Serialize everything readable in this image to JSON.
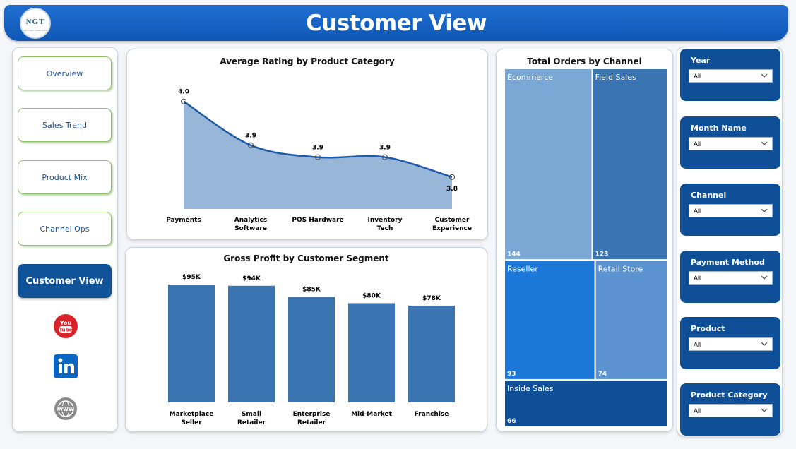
{
  "header": {
    "title": "Customer View",
    "logo_text": "NGT",
    "logo_subtext": "NEXT GEN TEMPLATES"
  },
  "nav": {
    "items": [
      {
        "label": "Overview"
      },
      {
        "label": "Sales Trend"
      },
      {
        "label": "Product Mix"
      },
      {
        "label": "Channel Ops"
      },
      {
        "label": "Customer View",
        "active": true
      }
    ],
    "social": [
      {
        "icon": "youtube-icon",
        "text": "You Tube"
      },
      {
        "icon": "linkedin-icon",
        "text": "in"
      },
      {
        "icon": "globe-icon",
        "text": "WWW"
      }
    ]
  },
  "colors": {
    "header": "#1565c8",
    "nav_active": "#115399",
    "line": "#1f5aa6",
    "area": "#97b6d8",
    "bar": "#3a74b1",
    "slicer": "#0f4f97"
  },
  "chart_data": [
    {
      "type": "area",
      "title": "Average Rating by Product Category",
      "categories": [
        "Payments",
        "Analytics Software",
        "POS Hardware",
        "Inventory Tech",
        "Customer Experience"
      ],
      "values": [
        4.0,
        3.9,
        3.9,
        3.9,
        3.8
      ],
      "data_labels": [
        "4.0",
        "3.9",
        "3.9",
        "3.9",
        "3.8"
      ],
      "y_values_detail": [
        4.02,
        3.91,
        3.88,
        3.88,
        3.83
      ],
      "ylim": [
        3.75,
        4.03
      ],
      "xlabel": "",
      "ylabel": "",
      "grid": false
    },
    {
      "type": "bar",
      "title": "Gross Profit by Customer Segment",
      "categories": [
        "Marketplace Seller",
        "Small Retailer",
        "Enterprise Retailer",
        "Mid-Market",
        "Franchise"
      ],
      "values": [
        95,
        94,
        85,
        80,
        78
      ],
      "data_labels": [
        "$95K",
        "$94K",
        "$85K",
        "$80K",
        "$78K"
      ],
      "ylim": [
        0,
        100
      ],
      "xlabel": "",
      "ylabel": "",
      "grid": false
    },
    {
      "type": "treemap",
      "title": "Total Orders by Channel",
      "items": [
        {
          "name": "Ecommerce",
          "value": 144,
          "color": "#7ba7d4"
        },
        {
          "name": "Field Sales",
          "value": 123,
          "color": "#3a74b1"
        },
        {
          "name": "Reseller",
          "value": 93,
          "color": "#1c78d8"
        },
        {
          "name": "Retail Store",
          "value": 74,
          "color": "#5a93cf"
        },
        {
          "name": "Inside Sales",
          "value": 66,
          "color": "#0f4f97"
        }
      ]
    }
  ],
  "slicers": [
    {
      "label": "Year",
      "value": "All"
    },
    {
      "label": "Month Name",
      "value": "All"
    },
    {
      "label": "Channel",
      "value": "All"
    },
    {
      "label": "Payment Method",
      "value": "All"
    },
    {
      "label": "Product",
      "value": "All"
    },
    {
      "label": "Product Category",
      "value": "All"
    }
  ]
}
